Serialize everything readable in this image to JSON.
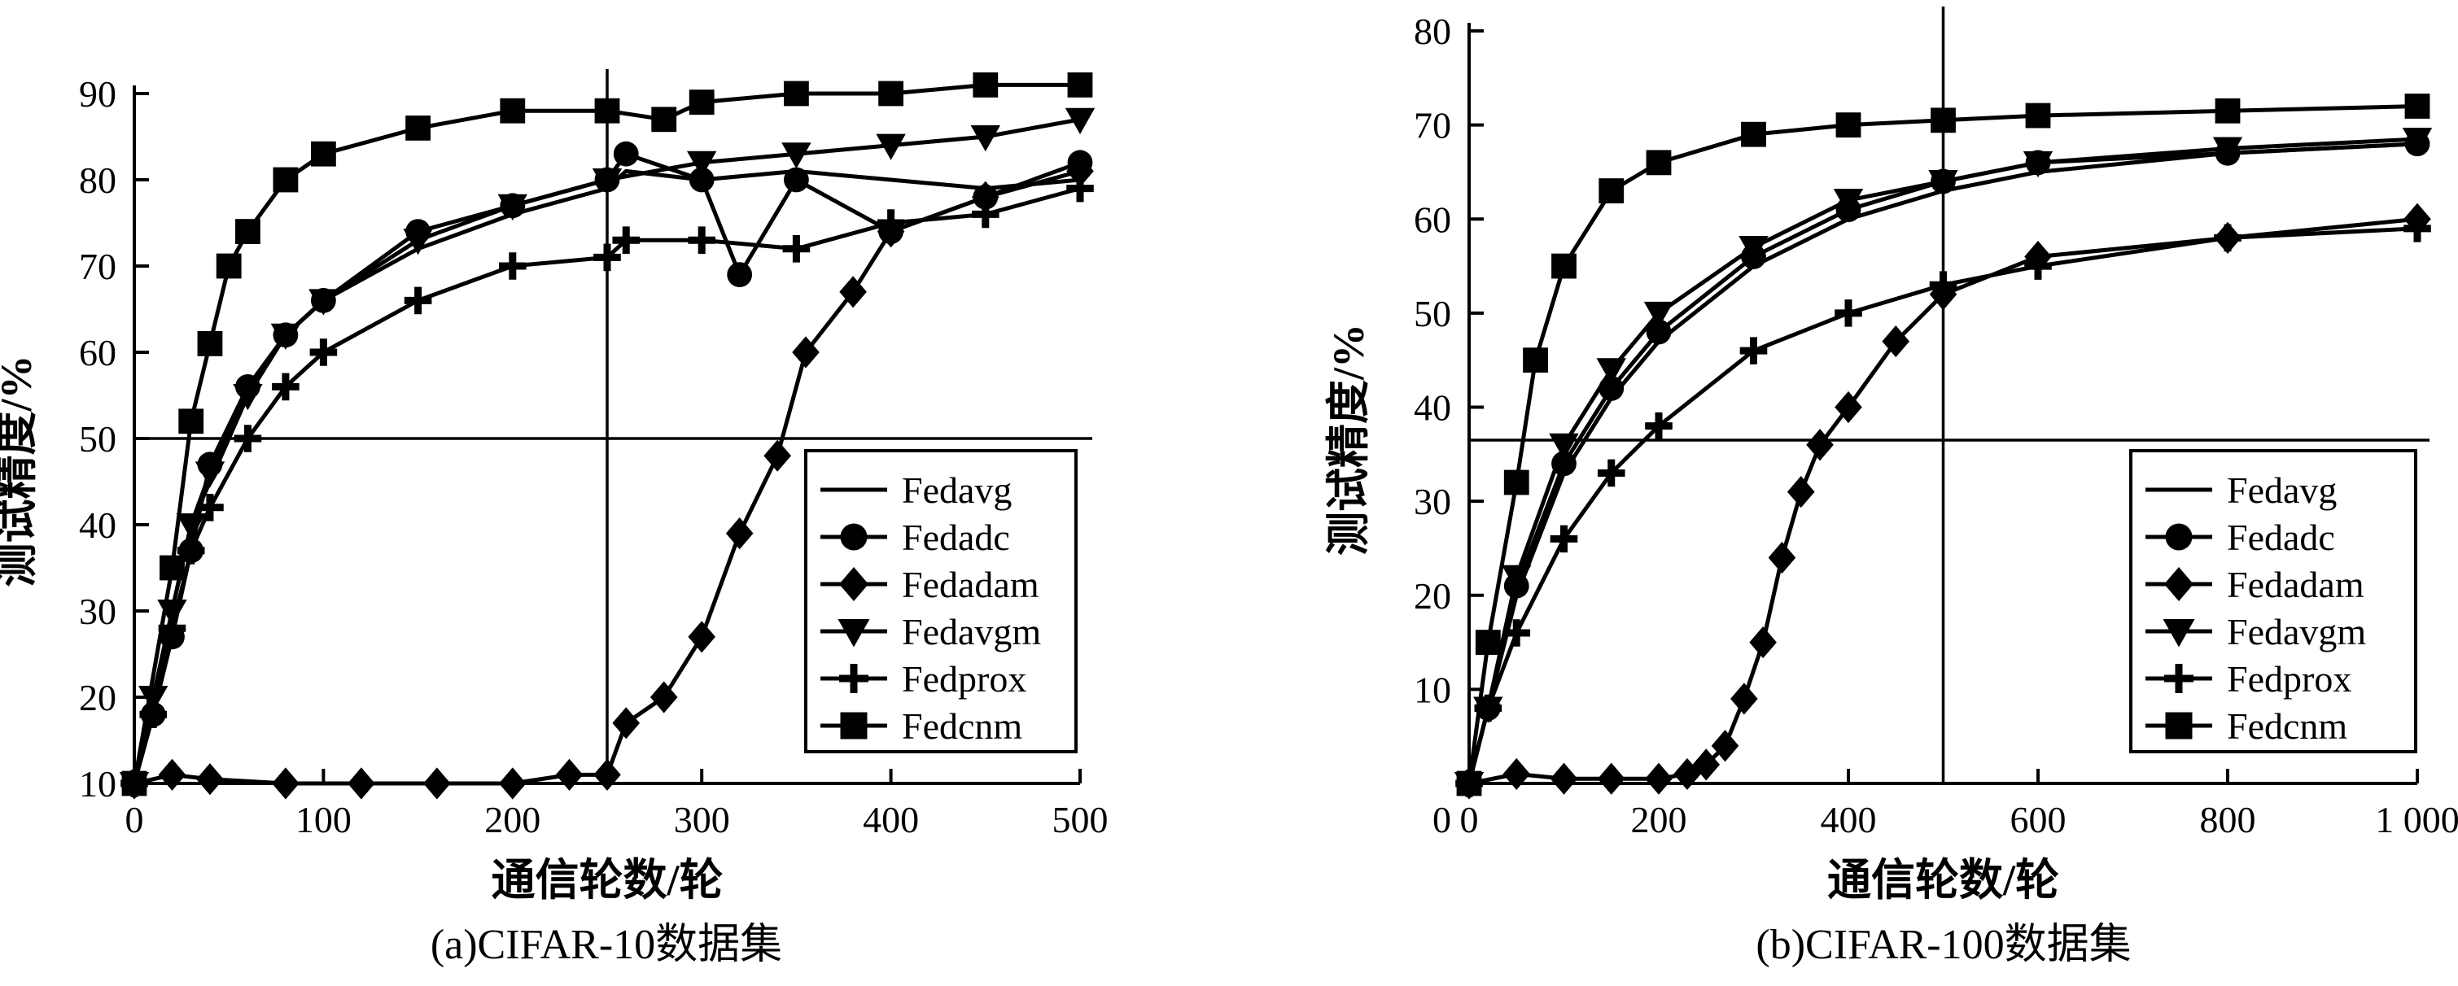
{
  "chart_data": [
    {
      "type": "line",
      "caption": "(a)CIFAR-10数据集",
      "xlabel": "通信轮数/轮",
      "ylabel": "测试精度/%",
      "xlim": [
        0,
        500
      ],
      "ylim": [
        10,
        90
      ],
      "xticks": [
        "0",
        "100",
        "200",
        "300",
        "400",
        "500"
      ],
      "yticks": [
        "10",
        "20",
        "30",
        "40",
        "50",
        "60",
        "70",
        "80",
        "90"
      ],
      "reference_lines": {
        "vertical_x": 250,
        "horizontal_y": 50
      },
      "legend": {
        "position": "lower-right",
        "entries": [
          "Fedavg",
          "Fedadc",
          "Fedadam",
          "Fedavgm",
          "Fedprox",
          "Fedcnm"
        ]
      },
      "series": [
        {
          "name": "Fedavg",
          "marker": "none",
          "x": [
            0,
            10,
            20,
            30,
            40,
            60,
            80,
            100,
            150,
            200,
            250,
            260,
            300,
            350,
            400,
            450,
            500
          ],
          "y": [
            10,
            20,
            30,
            40,
            45,
            55,
            62,
            66,
            72,
            76,
            79,
            81,
            80,
            81,
            80,
            79,
            80
          ]
        },
        {
          "name": "Fedadc",
          "marker": "circle",
          "x": [
            0,
            10,
            20,
            30,
            40,
            60,
            80,
            100,
            150,
            200,
            250,
            260,
            300,
            320,
            350,
            400,
            450,
            500
          ],
          "y": [
            10,
            18,
            27,
            37,
            47,
            56,
            62,
            66,
            74,
            77,
            80,
            83,
            80,
            69,
            80,
            74,
            78,
            82
          ]
        },
        {
          "name": "Fedadam",
          "marker": "diamond",
          "x": [
            0,
            20,
            40,
            80,
            120,
            160,
            200,
            230,
            250,
            260,
            280,
            300,
            320,
            340,
            355,
            380,
            400,
            450,
            500
          ],
          "y": [
            10,
            11,
            10.5,
            10,
            10,
            10,
            10,
            11,
            11,
            17,
            20,
            27,
            39,
            48,
            60,
            67,
            74,
            78,
            81
          ]
        },
        {
          "name": "Fedavgm",
          "marker": "triangle-down",
          "x": [
            0,
            10,
            20,
            30,
            40,
            60,
            80,
            100,
            150,
            200,
            250,
            300,
            350,
            400,
            450,
            500
          ],
          "y": [
            10,
            20,
            30,
            40,
            46,
            55,
            62,
            66,
            73,
            77,
            80,
            82,
            83,
            84,
            85,
            87
          ]
        },
        {
          "name": "Fedprox",
          "marker": "plus",
          "x": [
            0,
            10,
            20,
            30,
            40,
            60,
            80,
            100,
            150,
            200,
            250,
            260,
            300,
            350,
            400,
            450,
            500
          ],
          "y": [
            10,
            18,
            28,
            37,
            42,
            50,
            56,
            60,
            66,
            70,
            71,
            73,
            73,
            72,
            75,
            76,
            79
          ]
        },
        {
          "name": "Fedcnm",
          "marker": "square",
          "x": [
            0,
            20,
            30,
            40,
            50,
            60,
            80,
            100,
            150,
            200,
            250,
            280,
            300,
            350,
            400,
            450,
            500
          ],
          "y": [
            10,
            35,
            52,
            61,
            70,
            74,
            80,
            83,
            86,
            88,
            88,
            87,
            89,
            90,
            90,
            91,
            91
          ]
        }
      ]
    },
    {
      "type": "line",
      "caption": "(b)CIFAR-100数据集",
      "xlabel": "通信轮数/轮",
      "ylabel": "测试精度/%",
      "xlim": [
        0,
        1000
      ],
      "ylim": [
        0,
        80
      ],
      "xticks": [
        "0",
        "200",
        "400",
        "600",
        "800",
        "1 000"
      ],
      "yticks": [
        "10",
        "20",
        "30",
        "40",
        "50",
        "60",
        "70",
        "80"
      ],
      "reference_lines": {
        "vertical_x": 500,
        "horizontal_y": 36.5
      },
      "legend": {
        "position": "lower-right",
        "entries": [
          "Fedavg",
          "Fedadc",
          "Fedadam",
          "Fedavgm",
          "Fedprox",
          "Fedcnm"
        ]
      },
      "series": [
        {
          "name": "Fedavg",
          "marker": "none",
          "x": [
            0,
            20,
            50,
            100,
            150,
            200,
            300,
            400,
            500,
            600,
            800,
            1000
          ],
          "y": [
            0,
            8,
            20,
            33,
            41,
            47,
            55,
            60,
            63,
            65,
            67,
            68
          ]
        },
        {
          "name": "Fedadc",
          "marker": "circle",
          "x": [
            0,
            20,
            50,
            100,
            150,
            200,
            300,
            400,
            500,
            600,
            800,
            1000
          ],
          "y": [
            0,
            8,
            21,
            34,
            42,
            48,
            56,
            61,
            64,
            66,
            67,
            68
          ]
        },
        {
          "name": "Fedadam",
          "marker": "diamond",
          "x": [
            0,
            50,
            100,
            150,
            200,
            230,
            250,
            270,
            290,
            310,
            330,
            350,
            370,
            400,
            450,
            500,
            600,
            800,
            1000
          ],
          "y": [
            0,
            1,
            0.5,
            0.5,
            0.5,
            1,
            2,
            4,
            9,
            15,
            24,
            31,
            36,
            40,
            47,
            52,
            56,
            58,
            60
          ]
        },
        {
          "name": "Fedavgm",
          "marker": "triangle-down",
          "x": [
            0,
            20,
            50,
            100,
            150,
            200,
            300,
            400,
            500,
            600,
            800,
            1000
          ],
          "y": [
            0,
            8,
            22,
            36,
            44,
            50,
            57,
            62,
            64,
            66,
            67.5,
            68.5
          ]
        },
        {
          "name": "Fedprox",
          "marker": "plus",
          "x": [
            0,
            20,
            50,
            100,
            150,
            200,
            300,
            400,
            500,
            600,
            800,
            1000
          ],
          "y": [
            0,
            8,
            16,
            26,
            33,
            38,
            46,
            50,
            53,
            55,
            58,
            59
          ]
        },
        {
          "name": "Fedcnm",
          "marker": "square",
          "x": [
            0,
            20,
            50,
            70,
            100,
            150,
            200,
            300,
            400,
            500,
            600,
            800,
            1000
          ],
          "y": [
            0,
            15,
            32,
            45,
            55,
            63,
            66,
            69,
            70,
            70.5,
            71,
            71.5,
            72
          ]
        }
      ]
    }
  ]
}
